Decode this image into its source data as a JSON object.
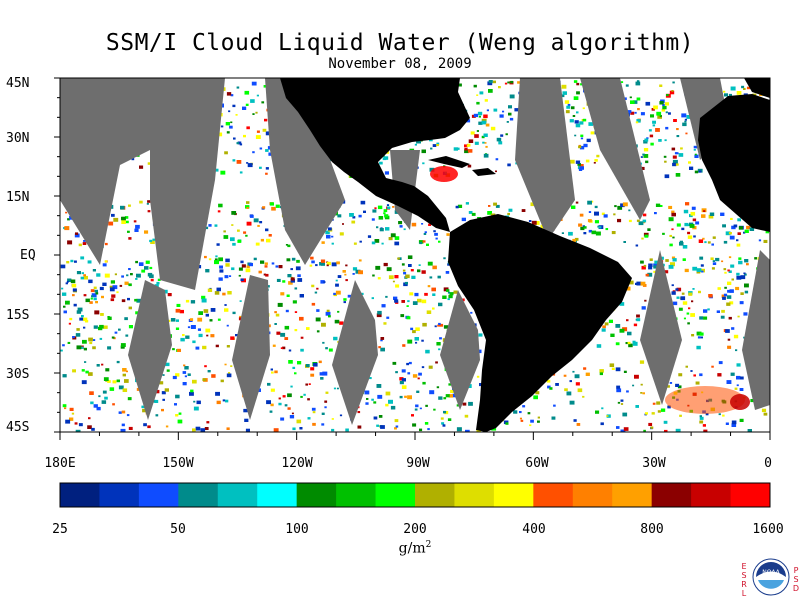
{
  "title": "SSM/I Cloud Liquid Water (Weng algorithm)",
  "subtitle": "November 08, 2009",
  "lat_labels": [
    "45N",
    "30N",
    "15N",
    "EQ",
    "15S",
    "30S",
    "45S"
  ],
  "lon_labels": [
    "180E",
    "150W",
    "120W",
    "90W",
    "60W",
    "30W",
    "0"
  ],
  "colorbar": {
    "colors": [
      "#00207f",
      "#0033bb",
      "#0f4cff",
      "#008b8b",
      "#00c0c0",
      "#00ffff",
      "#008b00",
      "#00c000",
      "#00ff00",
      "#b0b000",
      "#dede00",
      "#ffff00",
      "#ff5000",
      "#ff8000",
      "#ffa000",
      "#8b0000",
      "#c80000",
      "#ff0000"
    ],
    "tick_labels": [
      "25",
      "50",
      "100",
      "200",
      "400",
      "800",
      "1600"
    ],
    "units": "g/m",
    "units_sup": "2"
  },
  "colors": {
    "land": "#000000",
    "no_data": "#6e6e6e",
    "ocean_clear": "#ffffff"
  },
  "logo": {
    "left_letters": [
      "E",
      "S",
      "R",
      "L"
    ],
    "right_letters": [
      "P",
      "S",
      "D"
    ],
    "center": "NOAA"
  }
}
